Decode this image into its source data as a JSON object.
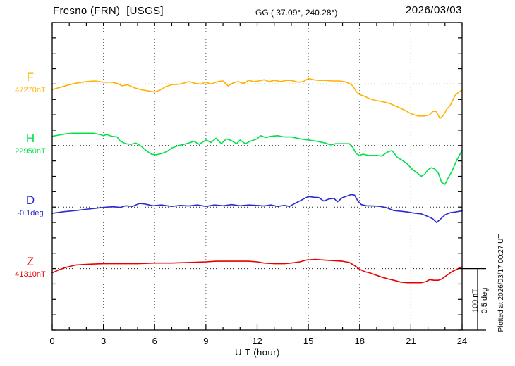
{
  "header": {
    "station": "Fresno (FRN)  [USGS]",
    "coords": "GG ( 37.09°, 240.28°)",
    "date": "2026/03/03"
  },
  "axis": {
    "x_label": "U T (hour)",
    "x_ticks": [
      "0",
      "3",
      "6",
      "9",
      "12",
      "15",
      "18",
      "21",
      "24"
    ],
    "x_min": 0,
    "x_max": 24,
    "minor_tick_every_hours": 1,
    "major_tick_every_hours": 3,
    "grid": "dotted vertical lines every 3 hours, dotted horizontal baseline per trace"
  },
  "scale_bar": {
    "line1": "100 nT",
    "line2": "0.5 deg"
  },
  "plotted_at": "Plotted at 2026/03/17 00:27 UT",
  "chart_data": {
    "type": "line",
    "title": "Fresno (FRN) [USGS] magnetogram 2026/03/03",
    "xlabel": "U T (hour)",
    "x_range_hours": [
      0,
      24
    ],
    "y_scale_per_division": "100 nT or 0.5 deg per 4 minor ticks",
    "series": [
      {
        "name": "F",
        "unit": "nT",
        "color": "#FFB200",
        "base_label": "47270nT",
        "base_value": 47270,
        "points": [
          [
            0,
            47261
          ],
          [
            0.5,
            47265
          ],
          [
            1,
            47269
          ],
          [
            1.5,
            47272
          ],
          [
            2,
            47274
          ],
          [
            2.5,
            47275
          ],
          [
            3,
            47273
          ],
          [
            3.5,
            47273
          ],
          [
            3.8,
            47271
          ],
          [
            4.1,
            47267
          ],
          [
            4.4,
            47269
          ],
          [
            4.8,
            47264
          ],
          [
            5.2,
            47261
          ],
          [
            5.6,
            47259
          ],
          [
            6,
            47257
          ],
          [
            6.3,
            47260
          ],
          [
            6.6,
            47265
          ],
          [
            7,
            47269
          ],
          [
            7.5,
            47270
          ],
          [
            8,
            47274
          ],
          [
            8.4,
            47271
          ],
          [
            8.7,
            47270
          ],
          [
            9,
            47273
          ],
          [
            9.3,
            47270
          ],
          [
            9.7,
            47274
          ],
          [
            10,
            47275
          ],
          [
            10.3,
            47267
          ],
          [
            10.6,
            47272
          ],
          [
            10.9,
            47274
          ],
          [
            11.2,
            47271
          ],
          [
            11.5,
            47276
          ],
          [
            11.8,
            47274
          ],
          [
            12.1,
            47275
          ],
          [
            12.4,
            47277
          ],
          [
            12.7,
            47274
          ],
          [
            13,
            47276
          ],
          [
            13.4,
            47274
          ],
          [
            13.7,
            47276
          ],
          [
            14,
            47276
          ],
          [
            14.4,
            47273
          ],
          [
            14.7,
            47274
          ],
          [
            15,
            47279
          ],
          [
            15.3,
            47277
          ],
          [
            15.6,
            47276
          ],
          [
            16,
            47276
          ],
          [
            16.4,
            47275
          ],
          [
            16.8,
            47275
          ],
          [
            17.1,
            47274
          ],
          [
            17.4,
            47271
          ],
          [
            17.6,
            47267
          ],
          [
            17.8,
            47258
          ],
          [
            18,
            47253
          ],
          [
            18.3,
            47250
          ],
          [
            18.6,
            47246
          ],
          [
            19,
            47243
          ],
          [
            19.4,
            47241
          ],
          [
            19.8,
            47238
          ],
          [
            20.2,
            47233
          ],
          [
            20.6,
            47228
          ],
          [
            21,
            47222
          ],
          [
            21.4,
            47218
          ],
          [
            21.8,
            47218
          ],
          [
            22.1,
            47220
          ],
          [
            22.3,
            47226
          ],
          [
            22.5,
            47225
          ],
          [
            22.7,
            47214
          ],
          [
            22.9,
            47219
          ],
          [
            23.1,
            47229
          ],
          [
            23.3,
            47235
          ],
          [
            23.6,
            47252
          ],
          [
            23.8,
            47257
          ],
          [
            24,
            47260
          ]
        ]
      },
      {
        "name": "H",
        "unit": "nT",
        "color": "#00E04A",
        "base_label": "22950nT",
        "base_value": 22950,
        "points": [
          [
            0,
            22965
          ],
          [
            0.4,
            22967
          ],
          [
            0.8,
            22969
          ],
          [
            1.2,
            22970
          ],
          [
            1.6,
            22970
          ],
          [
            2,
            22970
          ],
          [
            2.4,
            22970
          ],
          [
            2.8,
            22968
          ],
          [
            3,
            22966
          ],
          [
            3.2,
            22968
          ],
          [
            3.5,
            22965
          ],
          [
            3.8,
            22964
          ],
          [
            4,
            22957
          ],
          [
            4.3,
            22953
          ],
          [
            4.6,
            22952
          ],
          [
            4.9,
            22954
          ],
          [
            5.2,
            22949
          ],
          [
            5.5,
            22942
          ],
          [
            5.8,
            22936
          ],
          [
            6.1,
            22935
          ],
          [
            6.4,
            22937
          ],
          [
            6.7,
            22940
          ],
          [
            7,
            22946
          ],
          [
            7.4,
            22950
          ],
          [
            7.7,
            22952
          ],
          [
            8,
            22954
          ],
          [
            8.3,
            22957
          ],
          [
            8.6,
            22952
          ],
          [
            9,
            22959
          ],
          [
            9.3,
            22955
          ],
          [
            9.6,
            22962
          ],
          [
            9.9,
            22953
          ],
          [
            10.2,
            22961
          ],
          [
            10.5,
            22958
          ],
          [
            10.8,
            22953
          ],
          [
            11,
            22959
          ],
          [
            11.3,
            22953
          ],
          [
            11.6,
            22957
          ],
          [
            12,
            22961
          ],
          [
            12.2,
            22966
          ],
          [
            12.5,
            22963
          ],
          [
            12.8,
            22965
          ],
          [
            13.2,
            22966
          ],
          [
            13.6,
            22964
          ],
          [
            14,
            22964
          ],
          [
            14.5,
            22961
          ],
          [
            15,
            22959
          ],
          [
            15.5,
            22957
          ],
          [
            16,
            22954
          ],
          [
            16.3,
            22951
          ],
          [
            16.6,
            22953
          ],
          [
            17,
            22953
          ],
          [
            17.4,
            22953
          ],
          [
            17.6,
            22947
          ],
          [
            17.8,
            22937
          ],
          [
            18,
            22934
          ],
          [
            18.2,
            22936
          ],
          [
            18.5,
            22934
          ],
          [
            19,
            22934
          ],
          [
            19.3,
            22933
          ],
          [
            19.6,
            22939
          ],
          [
            19.9,
            22942
          ],
          [
            20.2,
            22931
          ],
          [
            20.5,
            22926
          ],
          [
            20.8,
            22920
          ],
          [
            21.1,
            22911
          ],
          [
            21.4,
            22905
          ],
          [
            21.6,
            22900
          ],
          [
            21.8,
            22903
          ],
          [
            22,
            22911
          ],
          [
            22.2,
            22914
          ],
          [
            22.4,
            22912
          ],
          [
            22.6,
            22906
          ],
          [
            22.8,
            22890
          ],
          [
            23,
            22887
          ],
          [
            23.2,
            22898
          ],
          [
            23.4,
            22908
          ],
          [
            23.7,
            22927
          ],
          [
            24,
            22942
          ]
        ]
      },
      {
        "name": "D",
        "unit": "deg",
        "color": "#2A2ACF",
        "base_label": "-0.1deg",
        "base_value": -0.1,
        "points": [
          [
            0,
            -0.151
          ],
          [
            0.7,
            -0.137
          ],
          [
            1.4,
            -0.128
          ],
          [
            2.1,
            -0.116
          ],
          [
            2.8,
            -0.106
          ],
          [
            3.2,
            -0.1
          ],
          [
            3.6,
            -0.097
          ],
          [
            4,
            -0.103
          ],
          [
            4.3,
            -0.089
          ],
          [
            4.7,
            -0.094
          ],
          [
            5.1,
            -0.071
          ],
          [
            5.4,
            -0.074
          ],
          [
            5.9,
            -0.089
          ],
          [
            6.4,
            -0.083
          ],
          [
            7,
            -0.094
          ],
          [
            7.5,
            -0.086
          ],
          [
            8,
            -0.091
          ],
          [
            8.5,
            -0.083
          ],
          [
            9,
            -0.094
          ],
          [
            9.5,
            -0.083
          ],
          [
            10,
            -0.089
          ],
          [
            10.5,
            -0.08
          ],
          [
            11,
            -0.089
          ],
          [
            11.5,
            -0.083
          ],
          [
            12,
            -0.086
          ],
          [
            12.4,
            -0.091
          ],
          [
            12.8,
            -0.083
          ],
          [
            13.2,
            -0.094
          ],
          [
            13.6,
            -0.086
          ],
          [
            13.9,
            -0.094
          ],
          [
            14.2,
            -0.071
          ],
          [
            14.6,
            -0.043
          ],
          [
            15,
            -0.014
          ],
          [
            15.3,
            -0.02
          ],
          [
            15.6,
            -0.023
          ],
          [
            15.9,
            -0.051
          ],
          [
            16.2,
            -0.034
          ],
          [
            16.5,
            -0.029
          ],
          [
            16.7,
            -0.057
          ],
          [
            17,
            -0.023
          ],
          [
            17.3,
            -0.009
          ],
          [
            17.5,
            0.002
          ],
          [
            17.7,
            -0.003
          ],
          [
            17.9,
            -0.051
          ],
          [
            18.1,
            -0.08
          ],
          [
            18.4,
            -0.089
          ],
          [
            18.8,
            -0.091
          ],
          [
            19.2,
            -0.094
          ],
          [
            19.6,
            -0.106
          ],
          [
            20,
            -0.128
          ],
          [
            20.4,
            -0.134
          ],
          [
            20.8,
            -0.14
          ],
          [
            21.2,
            -0.149
          ],
          [
            21.6,
            -0.155
          ],
          [
            21.9,
            -0.171
          ],
          [
            22.1,
            -0.183
          ],
          [
            22.3,
            -0.197
          ],
          [
            22.5,
            -0.225
          ],
          [
            22.7,
            -0.203
          ],
          [
            23,
            -0.163
          ],
          [
            23.3,
            -0.146
          ],
          [
            23.6,
            -0.14
          ],
          [
            24,
            -0.131
          ]
        ]
      },
      {
        "name": "Z",
        "unit": "nT",
        "color": "#E60000",
        "base_label": "41310nT",
        "base_value": 41310,
        "points": [
          [
            0,
            41303
          ],
          [
            0.4,
            41308
          ],
          [
            0.8,
            41312
          ],
          [
            1.4,
            41316
          ],
          [
            2,
            41317
          ],
          [
            3,
            41318
          ],
          [
            4,
            41318
          ],
          [
            5,
            41318
          ],
          [
            6,
            41319
          ],
          [
            7,
            41319
          ],
          [
            8,
            41320
          ],
          [
            9,
            41321
          ],
          [
            9.6,
            41322
          ],
          [
            10.5,
            41322
          ],
          [
            11.5,
            41322
          ],
          [
            12,
            41321
          ],
          [
            12.4,
            41319
          ],
          [
            13,
            41318
          ],
          [
            13.6,
            41318
          ],
          [
            14,
            41319
          ],
          [
            14.5,
            41321
          ],
          [
            14.9,
            41324
          ],
          [
            15.4,
            41325
          ],
          [
            15.9,
            41324
          ],
          [
            16.4,
            41323
          ],
          [
            17,
            41322
          ],
          [
            17.4,
            41320
          ],
          [
            17.7,
            41315
          ],
          [
            18,
            41309
          ],
          [
            18.3,
            41305
          ],
          [
            18.6,
            41303
          ],
          [
            19,
            41299
          ],
          [
            19.3,
            41296
          ],
          [
            19.7,
            41293
          ],
          [
            20,
            41291
          ],
          [
            20.4,
            41288
          ],
          [
            20.8,
            41287
          ],
          [
            21.2,
            41287
          ],
          [
            21.6,
            41287
          ],
          [
            21.9,
            41289
          ],
          [
            22.1,
            41292
          ],
          [
            22.35,
            41291
          ],
          [
            22.6,
            41291
          ],
          [
            22.8,
            41293
          ],
          [
            23,
            41297
          ],
          [
            23.2,
            41301
          ],
          [
            23.4,
            41305
          ],
          [
            23.7,
            41309
          ],
          [
            24,
            41313
          ]
        ]
      }
    ]
  }
}
